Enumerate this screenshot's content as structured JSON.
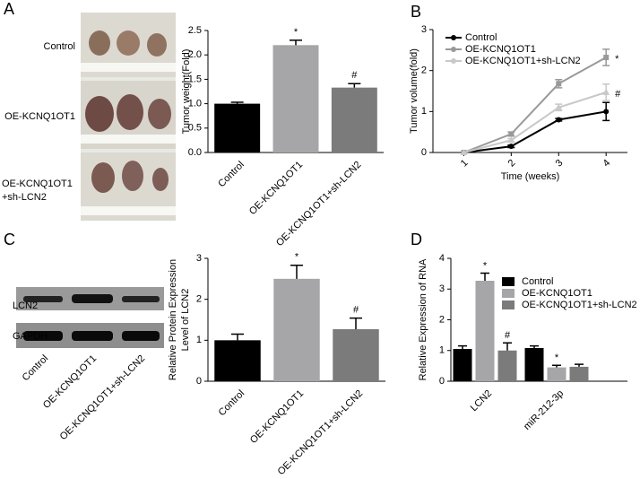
{
  "panels": [
    "A",
    "B",
    "C",
    "D"
  ],
  "photo_labels": [
    "Control",
    "OE-KCNQ1OT1",
    [
      "OE-KCNQ1OT1",
      "+sh-LCN2"
    ]
  ],
  "blot_labels": {
    "bands": [
      "LCN2",
      "GAPDH"
    ],
    "lanes": [
      "Control",
      "OE-KCNQ1OT1",
      "OE-KCNQ1OT1+sh-LCN2"
    ]
  },
  "chart_data": [
    {
      "type": "bar",
      "ylabel": [
        "Tumor weight(Fold)"
      ],
      "categories": [
        "Control",
        "OE-KCNQ1OT1",
        "OE-KCNQ1OT1+sh-LCN2"
      ],
      "values": [
        1.0,
        2.2,
        1.33
      ],
      "errors": [
        0.03,
        0.1,
        0.08
      ],
      "colors": [
        "#000000",
        "#a6a6a9",
        "#7b7b7b"
      ],
      "markers": [
        null,
        "*",
        "#"
      ],
      "ylim": [
        0,
        2.5
      ],
      "yticks": [
        {
          "value": 0,
          "label": "0.0"
        },
        0.5,
        {
          "value": 1,
          "label": "1.0"
        },
        1.5,
        {
          "value": 2,
          "label": "2.0"
        },
        2.5
      ]
    },
    {
      "type": "line",
      "ylabel": [
        "Tumor volume(fold)"
      ],
      "xlabel": "Time (weeks)",
      "x": [
        1,
        2,
        3,
        4
      ],
      "xlim": [
        0.35,
        4.45
      ],
      "xticks": [
        1,
        2,
        3,
        4
      ],
      "ylim": [
        0,
        3
      ],
      "yticks": [
        0,
        1,
        2,
        3
      ],
      "legend": "top-left",
      "series": [
        {
          "name": "Control",
          "color": "#000000",
          "marker": "circle",
          "values": [
            0,
            0.15,
            0.8,
            1.0
          ],
          "errors": [
            0,
            0.03,
            0.03,
            0.22
          ],
          "markers": [
            null,
            null,
            null,
            null
          ]
        },
        {
          "name": "OE-KCNQ1OT1",
          "color": "#999999",
          "marker": "square",
          "values": [
            0,
            0.45,
            1.68,
            2.32
          ],
          "errors": [
            0,
            0.05,
            0.1,
            0.2
          ],
          "markers": [
            null,
            null,
            null,
            "*"
          ]
        },
        {
          "name": "OE-KCNQ1OT1+sh-LCN2",
          "color": "#c8c8c8",
          "marker": "triangle",
          "values": [
            0,
            0.3,
            1.1,
            1.47
          ],
          "errors": [
            0,
            0.04,
            0.08,
            0.2
          ],
          "markers": [
            null,
            null,
            null,
            "#"
          ]
        }
      ]
    },
    {
      "type": "bar",
      "ylabel": [
        "Relative Protein Expression",
        "Level of LCN2"
      ],
      "categories": [
        "Control",
        "OE-KCNQ1OT1",
        "OE-KCNQ1OT1+sh-LCN2"
      ],
      "values": [
        1.0,
        2.5,
        1.27
      ],
      "errors": [
        0.15,
        0.33,
        0.27
      ],
      "colors": [
        "#000000",
        "#a6a6a9",
        "#7b7b7b"
      ],
      "markers": [
        null,
        "*",
        "#"
      ],
      "ylim": [
        0,
        3
      ],
      "yticks": [
        0,
        1,
        2,
        3
      ]
    },
    {
      "type": "bar",
      "ylabel": [
        "Relative Expression of RNA"
      ],
      "categories": [
        "LCN2",
        "miR-212-3p"
      ],
      "legend": "top-right",
      "ylim": [
        0,
        4
      ],
      "yticks": [
        0,
        1,
        2,
        3,
        4
      ],
      "series": [
        {
          "name": "Control",
          "color": "#000000",
          "values": [
            1.05,
            1.08
          ],
          "errors": [
            0.1,
            0.07
          ],
          "markers": [
            null,
            null
          ]
        },
        {
          "name": "OE-KCNQ1OT1",
          "color": "#a6a6a9",
          "values": [
            3.27,
            0.45
          ],
          "errors": [
            0.25,
            0.07
          ],
          "markers": [
            "*",
            "*"
          ]
        },
        {
          "name": "OE-KCNQ1OT1+sh-LCN2",
          "color": "#7b7b7b",
          "values": [
            1.0,
            0.47
          ],
          "errors": [
            0.25,
            0.08
          ],
          "markers": [
            "#",
            null
          ]
        }
      ]
    }
  ]
}
